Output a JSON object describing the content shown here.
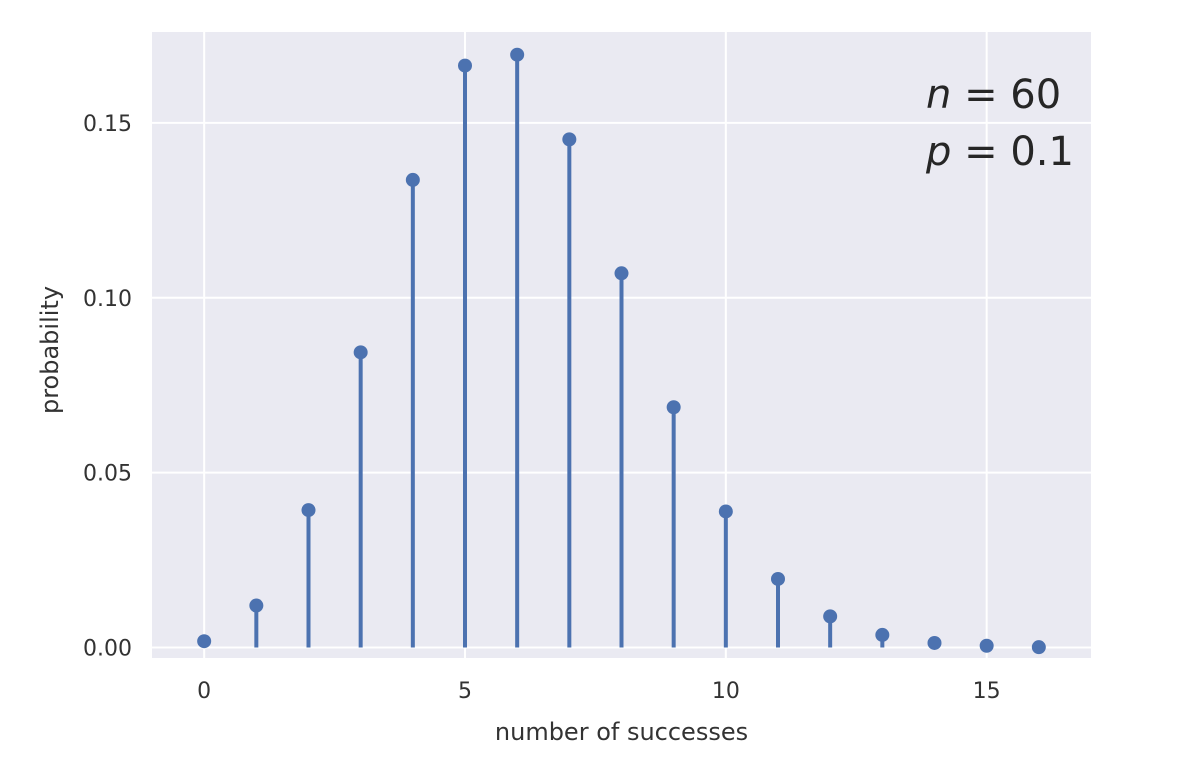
{
  "chart_data": {
    "type": "stem",
    "x": [
      0,
      1,
      2,
      3,
      4,
      5,
      6,
      7,
      8,
      9,
      10,
      11,
      12,
      13,
      14,
      15,
      16
    ],
    "values": [
      0.0018,
      0.012,
      0.0393,
      0.0844,
      0.1337,
      0.1664,
      0.1695,
      0.1453,
      0.107,
      0.0687,
      0.0389,
      0.0196,
      0.0089,
      0.0036,
      0.0013,
      0.0005,
      0.0001
    ],
    "title": "",
    "xlabel": "number of successes",
    "ylabel": "probability",
    "xlim": [
      -1,
      17
    ],
    "ylim": [
      -0.003,
      0.176
    ],
    "xticks": [
      0,
      5,
      10,
      15
    ],
    "xtick_labels": [
      "0",
      "5",
      "10",
      "15"
    ],
    "yticks": [
      0.0,
      0.05,
      0.1,
      0.15
    ],
    "ytick_labels": [
      "0.00",
      "0.05",
      "0.10",
      "0.15"
    ],
    "grid": true,
    "annotation": {
      "n_var": "n",
      "n_eq": " = 60",
      "p_var": "p",
      "p_eq": " = 0.1"
    },
    "colors": {
      "background": "#eaeaf2",
      "stem": "#4c72b0",
      "grid": "#ffffff"
    }
  }
}
